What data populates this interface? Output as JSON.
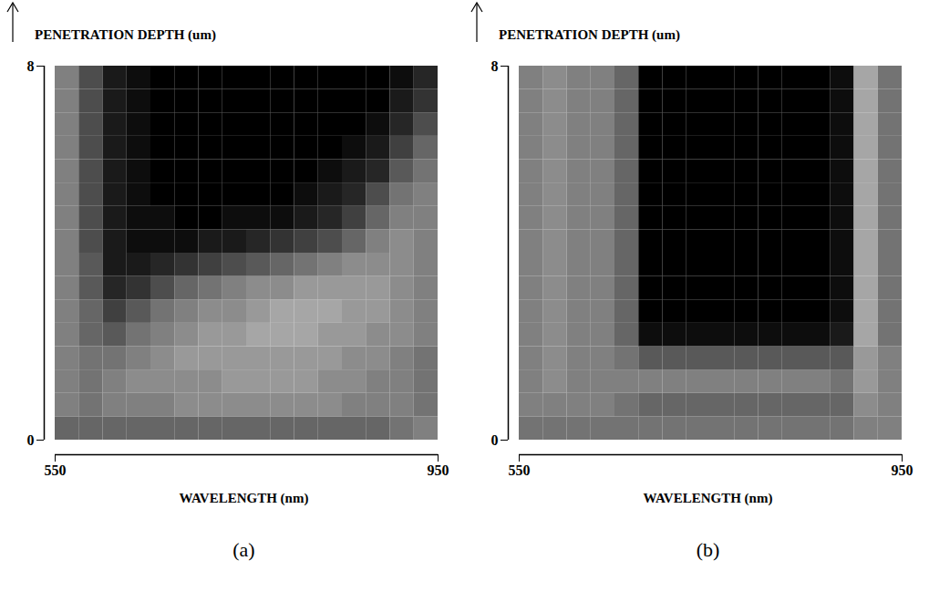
{
  "chart_data": [
    {
      "type": "heatmap",
      "title": "(a)",
      "x_label": "WAVELENGTH (nm)",
      "y_label": "PENETRATION DEPTH (um)",
      "xlim": [
        550,
        950
      ],
      "ylim": [
        0,
        8
      ],
      "xticks": [
        550,
        950
      ],
      "yticks": [
        0,
        8
      ],
      "zlim": [
        0,
        1
      ],
      "x_edges": [
        550,
        575,
        600,
        625,
        650,
        675,
        700,
        725,
        750,
        775,
        800,
        825,
        850,
        875,
        900,
        925,
        950
      ],
      "y_edges": [
        0,
        0.5,
        1,
        1.5,
        2,
        2.5,
        3,
        3.5,
        4,
        4.5,
        5,
        5.5,
        6,
        6.5,
        7,
        7.5,
        8
      ],
      "z": [
        [
          0.6,
          0.6,
          0.6,
          0.6,
          0.6,
          0.6,
          0.6,
          0.6,
          0.6,
          0.6,
          0.6,
          0.6,
          0.6,
          0.6,
          0.55,
          0.5
        ],
        [
          0.5,
          0.55,
          0.5,
          0.5,
          0.5,
          0.45,
          0.45,
          0.45,
          0.45,
          0.45,
          0.45,
          0.45,
          0.5,
          0.5,
          0.5,
          0.55
        ],
        [
          0.5,
          0.55,
          0.5,
          0.45,
          0.45,
          0.45,
          0.45,
          0.4,
          0.4,
          0.4,
          0.4,
          0.45,
          0.45,
          0.5,
          0.5,
          0.55
        ],
        [
          0.5,
          0.55,
          0.55,
          0.5,
          0.45,
          0.4,
          0.4,
          0.4,
          0.4,
          0.4,
          0.4,
          0.4,
          0.45,
          0.45,
          0.5,
          0.55
        ],
        [
          0.5,
          0.6,
          0.65,
          0.55,
          0.5,
          0.45,
          0.4,
          0.4,
          0.35,
          0.35,
          0.35,
          0.4,
          0.4,
          0.45,
          0.45,
          0.5
        ],
        [
          0.5,
          0.6,
          0.75,
          0.65,
          0.55,
          0.5,
          0.45,
          0.45,
          0.4,
          0.35,
          0.35,
          0.35,
          0.4,
          0.4,
          0.45,
          0.5
        ],
        [
          0.5,
          0.65,
          0.85,
          0.8,
          0.7,
          0.6,
          0.55,
          0.5,
          0.45,
          0.45,
          0.4,
          0.4,
          0.4,
          0.4,
          0.45,
          0.5
        ],
        [
          0.5,
          0.65,
          0.9,
          0.9,
          0.85,
          0.8,
          0.75,
          0.7,
          0.65,
          0.6,
          0.55,
          0.5,
          0.45,
          0.45,
          0.45,
          0.5
        ],
        [
          0.5,
          0.7,
          0.9,
          0.95,
          0.95,
          0.95,
          0.9,
          0.9,
          0.85,
          0.8,
          0.75,
          0.7,
          0.6,
          0.5,
          0.45,
          0.5
        ],
        [
          0.5,
          0.7,
          0.9,
          0.95,
          0.95,
          1,
          1,
          0.95,
          0.95,
          0.95,
          0.9,
          0.85,
          0.75,
          0.6,
          0.5,
          0.5
        ],
        [
          0.5,
          0.7,
          0.9,
          0.95,
          1,
          1,
          1,
          1,
          1,
          1,
          0.95,
          0.9,
          0.85,
          0.7,
          0.55,
          0.5
        ],
        [
          0.5,
          0.7,
          0.9,
          0.95,
          1,
          1,
          1,
          1,
          1,
          1,
          1,
          0.95,
          0.9,
          0.85,
          0.65,
          0.55
        ],
        [
          0.5,
          0.7,
          0.9,
          0.95,
          1,
          1,
          1,
          1,
          1,
          1,
          1,
          1,
          0.95,
          0.9,
          0.75,
          0.6
        ],
        [
          0.5,
          0.7,
          0.9,
          0.95,
          1,
          1,
          1,
          1,
          1,
          1,
          1,
          1,
          1,
          0.95,
          0.85,
          0.7
        ],
        [
          0.5,
          0.7,
          0.9,
          0.95,
          1,
          1,
          1,
          1,
          1,
          1,
          1,
          1,
          1,
          1,
          0.9,
          0.8
        ],
        [
          0.5,
          0.7,
          0.9,
          0.95,
          1,
          1,
          1,
          1,
          1,
          1,
          1,
          1,
          1,
          1,
          0.95,
          0.85
        ]
      ]
    },
    {
      "type": "heatmap",
      "title": "(b)",
      "x_label": "WAVELENGTH (nm)",
      "y_label": "PENETRATION DEPTH (um)",
      "xlim": [
        550,
        950
      ],
      "ylim": [
        0,
        8
      ],
      "xticks": [
        550,
        950
      ],
      "yticks": [
        0,
        8
      ],
      "zlim": [
        0,
        1
      ],
      "x_edges": [
        550,
        575,
        600,
        625,
        650,
        675,
        700,
        725,
        750,
        775,
        800,
        825,
        850,
        875,
        900,
        925,
        950
      ],
      "y_edges": [
        0,
        0.5,
        1,
        1.5,
        2,
        2.5,
        3,
        3.5,
        4,
        4.5,
        5,
        5.5,
        6,
        6.5,
        7,
        7.5,
        8
      ],
      "z": [
        [
          0.55,
          0.55,
          0.55,
          0.55,
          0.55,
          0.55,
          0.55,
          0.55,
          0.55,
          0.55,
          0.55,
          0.55,
          0.55,
          0.55,
          0.5,
          0.5
        ],
        [
          0.5,
          0.5,
          0.5,
          0.5,
          0.55,
          0.6,
          0.6,
          0.6,
          0.6,
          0.6,
          0.6,
          0.6,
          0.6,
          0.6,
          0.45,
          0.5
        ],
        [
          0.5,
          0.45,
          0.5,
          0.5,
          0.5,
          0.5,
          0.5,
          0.5,
          0.5,
          0.5,
          0.5,
          0.5,
          0.5,
          0.55,
          0.4,
          0.5
        ],
        [
          0.5,
          0.45,
          0.5,
          0.5,
          0.55,
          0.65,
          0.65,
          0.65,
          0.65,
          0.65,
          0.65,
          0.65,
          0.65,
          0.65,
          0.4,
          0.5
        ],
        [
          0.5,
          0.45,
          0.5,
          0.5,
          0.6,
          0.95,
          0.95,
          0.95,
          0.95,
          0.95,
          0.95,
          0.95,
          0.95,
          0.9,
          0.35,
          0.55
        ],
        [
          0.5,
          0.45,
          0.5,
          0.5,
          0.6,
          1,
          1,
          1,
          1,
          1,
          1,
          1,
          1,
          0.95,
          0.35,
          0.55
        ],
        [
          0.5,
          0.45,
          0.5,
          0.5,
          0.6,
          1,
          1,
          1,
          1,
          1,
          1,
          1,
          1,
          0.95,
          0.35,
          0.55
        ],
        [
          0.5,
          0.45,
          0.5,
          0.5,
          0.6,
          1,
          1,
          1,
          1,
          1,
          1,
          1,
          1,
          0.95,
          0.35,
          0.55
        ],
        [
          0.5,
          0.45,
          0.5,
          0.5,
          0.6,
          1,
          1,
          1,
          1,
          1,
          1,
          1,
          1,
          0.95,
          0.35,
          0.55
        ],
        [
          0.5,
          0.45,
          0.5,
          0.5,
          0.6,
          1,
          1,
          1,
          1,
          1,
          1,
          1,
          1,
          0.95,
          0.35,
          0.55
        ],
        [
          0.5,
          0.45,
          0.5,
          0.5,
          0.6,
          1,
          1,
          1,
          1,
          1,
          1,
          1,
          1,
          0.95,
          0.35,
          0.55
        ],
        [
          0.5,
          0.45,
          0.5,
          0.5,
          0.6,
          1,
          1,
          1,
          1,
          1,
          1,
          1,
          1,
          0.95,
          0.35,
          0.55
        ],
        [
          0.5,
          0.45,
          0.5,
          0.5,
          0.6,
          1,
          1,
          1,
          1,
          1,
          1,
          1,
          1,
          0.95,
          0.35,
          0.55
        ],
        [
          0.5,
          0.45,
          0.5,
          0.5,
          0.6,
          1,
          1,
          1,
          1,
          1,
          1,
          1,
          1,
          0.95,
          0.35,
          0.55
        ],
        [
          0.5,
          0.45,
          0.5,
          0.5,
          0.6,
          1,
          1,
          1,
          1,
          1,
          1,
          1,
          1,
          0.95,
          0.35,
          0.55
        ],
        [
          0.5,
          0.45,
          0.5,
          0.5,
          0.6,
          1,
          1,
          1,
          1,
          1,
          1,
          1,
          1,
          0.95,
          0.35,
          0.55
        ]
      ]
    }
  ]
}
